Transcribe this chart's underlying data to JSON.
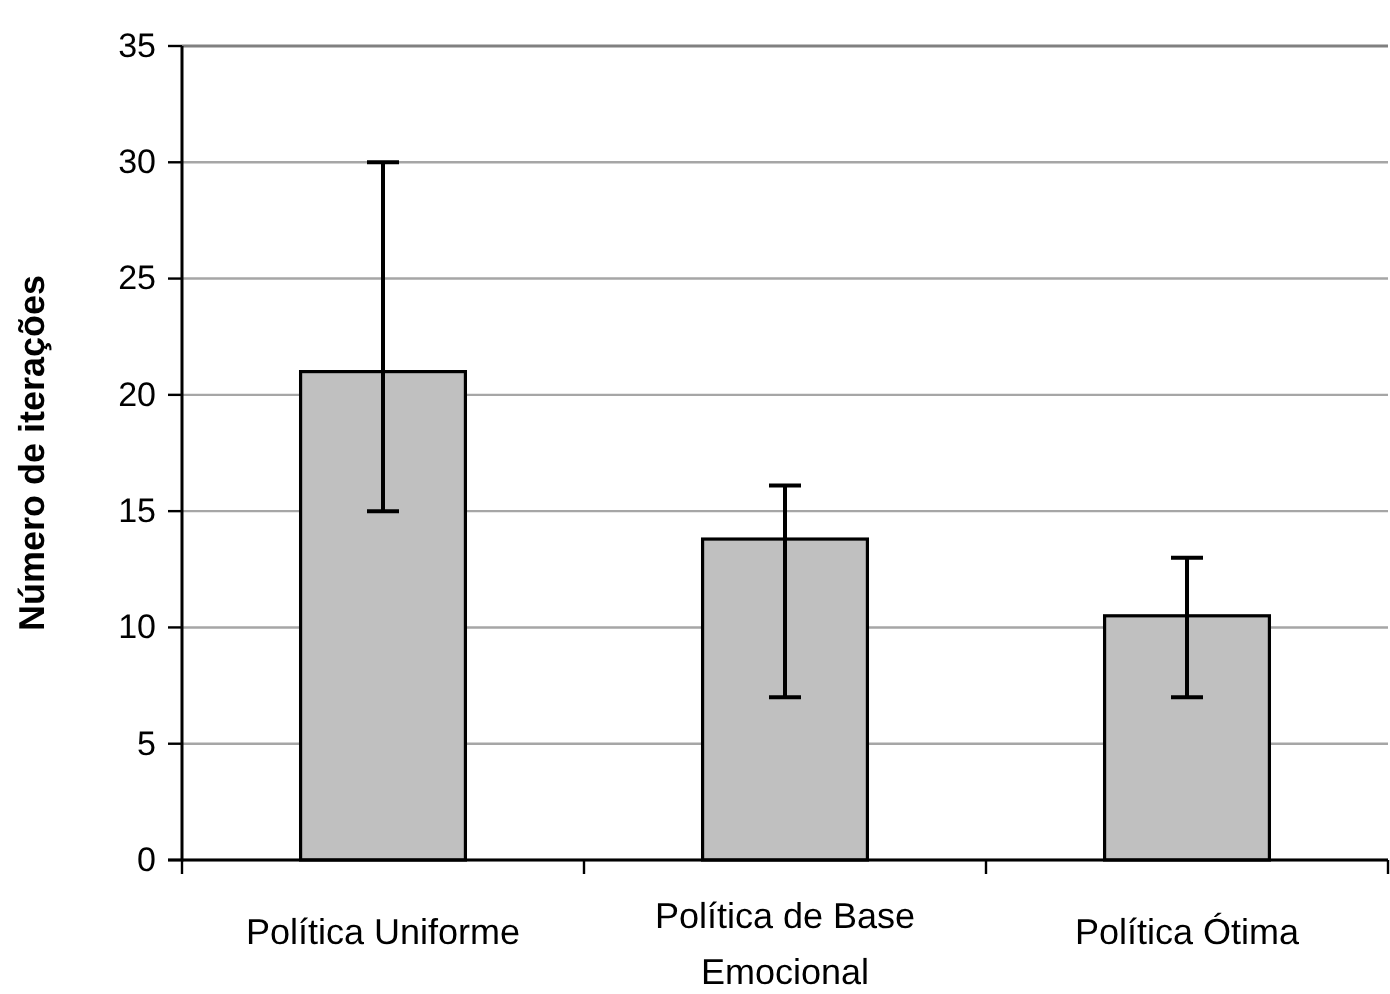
{
  "chart_data": {
    "type": "bar",
    "ylabel": "Número de iterações",
    "categories": [
      "Política Uniforme",
      "Política de Base Emocional",
      "Política Ótima"
    ],
    "values": [
      21,
      13.8,
      10.5
    ],
    "errors": [
      [
        15,
        30
      ],
      [
        7,
        16.1
      ],
      [
        7,
        13
      ]
    ],
    "color": "#c0c0c0",
    "ylim": [
      0,
      35
    ],
    "yticks": [
      0,
      5,
      10,
      15,
      20,
      25,
      30,
      35
    ],
    "grid": "y"
  }
}
